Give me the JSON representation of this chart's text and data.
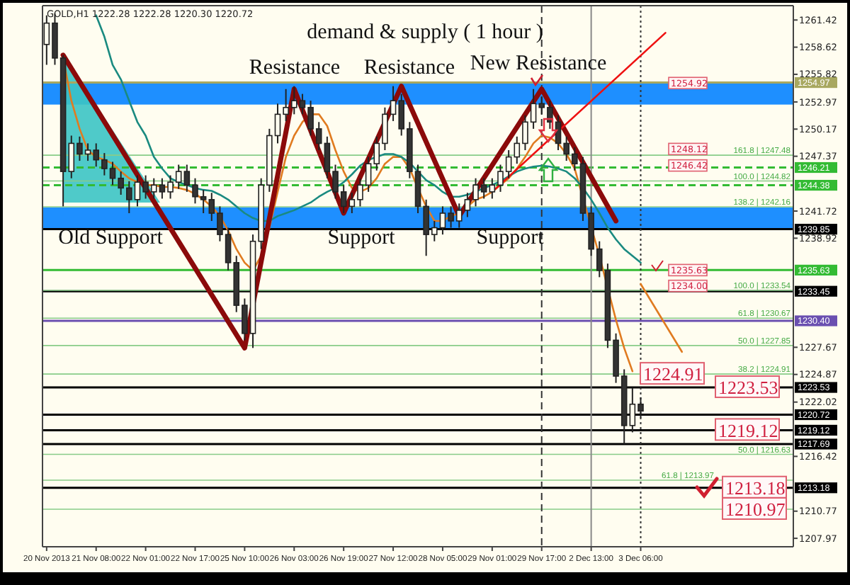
{
  "chart_data": {
    "type": "candlestick",
    "title": "demand & supply ( 1 hour )",
    "subtitle": "GOLD,H1  1222.28 1222.28 1220.30 1220.72",
    "categories": [
      "20 Nov 2013",
      null,
      null,
      null,
      null,
      null,
      "21 Nov 08:00",
      null,
      null,
      null,
      null,
      null,
      "22 Nov 01:00",
      null,
      null,
      null,
      null,
      null,
      "22 Nov 17:00",
      null,
      null,
      null,
      null,
      null,
      "25 Nov 10:00",
      null,
      null,
      null,
      null,
      null,
      "26 Nov 03:00",
      null,
      null,
      null,
      null,
      null,
      "26 Nov 19:00",
      null,
      null,
      null,
      null,
      null,
      "27 Nov 12:00",
      null,
      null,
      null,
      null,
      null,
      "28 Nov 05:00",
      null,
      null,
      null,
      null,
      null,
      "29 Nov 01:00",
      null,
      null,
      null,
      null,
      null,
      "29 Nov 17:00",
      null,
      null,
      null,
      null,
      null,
      "2 Dec 13:00",
      null,
      null,
      null,
      null,
      null,
      "3 Dec 06:00",
      null,
      null,
      null,
      null,
      null,
      null,
      null,
      null,
      null,
      null,
      null,
      null,
      null,
      null,
      null,
      null,
      null,
      null
    ],
    "ohlc": [
      [
        1258.9,
        1261.9,
        1256.8,
        1261.1
      ],
      [
        1261.1,
        1262.1,
        1256.8,
        1257.5
      ],
      [
        1257.5,
        1257.8,
        1242.2,
        1245.8
      ],
      [
        1245.8,
        1249.5,
        1245.1,
        1248.7
      ],
      [
        1248.7,
        1249.4,
        1246.9,
        1247.6
      ],
      [
        1247.6,
        1248.7,
        1246.9,
        1248.0
      ],
      [
        1248.0,
        1248.7,
        1246.3,
        1247.0
      ],
      [
        1247.0,
        1247.7,
        1245.4,
        1246.1
      ],
      [
        1246.1,
        1246.8,
        1244.4,
        1245.1
      ],
      [
        1245.1,
        1245.8,
        1243.4,
        1244.1
      ],
      [
        1244.1,
        1244.8,
        1241.5,
        1242.9
      ],
      [
        1242.9,
        1245.4,
        1242.2,
        1244.7
      ],
      [
        1244.7,
        1245.4,
        1243.0,
        1243.7
      ],
      [
        1243.7,
        1245.1,
        1243.0,
        1244.4
      ],
      [
        1244.4,
        1245.1,
        1243.0,
        1243.7
      ],
      [
        1243.7,
        1245.4,
        1243.0,
        1244.7
      ],
      [
        1244.7,
        1246.5,
        1244.0,
        1245.8
      ],
      [
        1245.8,
        1246.5,
        1243.7,
        1244.4
      ],
      [
        1244.4,
        1245.1,
        1242.5,
        1243.2
      ],
      [
        1243.2,
        1243.9,
        1241.5,
        1242.9
      ],
      [
        1242.9,
        1243.6,
        1240.7,
        1241.5
      ],
      [
        1241.5,
        1242.2,
        1238.6,
        1239.3
      ],
      [
        1239.3,
        1240.0,
        1235.6,
        1236.4
      ],
      [
        1236.4,
        1237.1,
        1231.3,
        1232.0
      ],
      [
        1232.0,
        1232.7,
        1228.4,
        1229.1
      ],
      [
        1229.1,
        1239.3,
        1227.6,
        1238.6
      ],
      [
        1238.6,
        1245.1,
        1237.8,
        1244.4
      ],
      [
        1244.4,
        1250.2,
        1243.7,
        1249.5
      ],
      [
        1249.5,
        1252.8,
        1248.7,
        1251.7
      ],
      [
        1251.7,
        1254.3,
        1251.0,
        1252.4
      ],
      [
        1252.4,
        1254.6,
        1251.7,
        1253.1
      ],
      [
        1253.1,
        1253.8,
        1251.7,
        1252.4
      ],
      [
        1252.4,
        1253.1,
        1249.5,
        1250.2
      ],
      [
        1250.2,
        1250.9,
        1248.0,
        1248.7
      ],
      [
        1248.7,
        1249.4,
        1245.1,
        1245.8
      ],
      [
        1245.8,
        1246.5,
        1243.0,
        1243.7
      ],
      [
        1243.7,
        1244.4,
        1241.5,
        1242.2
      ],
      [
        1242.2,
        1243.6,
        1241.5,
        1242.9
      ],
      [
        1242.9,
        1245.1,
        1242.2,
        1244.4
      ],
      [
        1244.4,
        1247.3,
        1243.7,
        1246.6
      ],
      [
        1246.6,
        1249.4,
        1245.9,
        1248.7
      ],
      [
        1248.7,
        1252.4,
        1248.0,
        1251.7
      ],
      [
        1251.7,
        1254.6,
        1251.0,
        1253.1
      ],
      [
        1253.1,
        1253.8,
        1249.5,
        1250.2
      ],
      [
        1250.2,
        1250.9,
        1245.1,
        1245.8
      ],
      [
        1245.8,
        1246.5,
        1241.5,
        1242.2
      ],
      [
        1242.2,
        1242.9,
        1237.1,
        1239.3
      ],
      [
        1239.3,
        1240.7,
        1238.6,
        1240.0
      ],
      [
        1240.0,
        1242.2,
        1239.3,
        1241.5
      ],
      [
        1241.5,
        1242.2,
        1240.0,
        1240.7
      ],
      [
        1240.7,
        1242.5,
        1240.0,
        1241.8
      ],
      [
        1241.8,
        1243.6,
        1241.1,
        1242.9
      ],
      [
        1242.9,
        1245.1,
        1242.2,
        1244.4
      ],
      [
        1244.4,
        1245.1,
        1243.0,
        1243.7
      ],
      [
        1243.7,
        1245.1,
        1243.0,
        1244.4
      ],
      [
        1244.4,
        1246.5,
        1243.7,
        1245.8
      ],
      [
        1245.8,
        1248.0,
        1245.1,
        1247.3
      ],
      [
        1247.3,
        1249.4,
        1246.6,
        1248.7
      ],
      [
        1248.7,
        1251.6,
        1248.0,
        1250.9
      ],
      [
        1250.9,
        1254.3,
        1250.2,
        1252.8
      ],
      [
        1252.8,
        1253.5,
        1251.7,
        1252.4
      ],
      [
        1252.4,
        1253.1,
        1250.2,
        1250.9
      ],
      [
        1250.9,
        1251.6,
        1248.0,
        1248.7
      ],
      [
        1248.7,
        1249.4,
        1246.9,
        1247.6
      ],
      [
        1247.6,
        1248.3,
        1245.9,
        1246.6
      ],
      [
        1246.6,
        1247.3,
        1240.7,
        1241.5
      ],
      [
        1241.5,
        1242.2,
        1237.1,
        1237.8
      ],
      [
        1237.8,
        1238.6,
        1234.9,
        1235.6
      ],
      [
        1235.6,
        1236.3,
        1227.6,
        1228.4
      ],
      [
        1228.4,
        1229.1,
        1224.0,
        1224.7
      ],
      [
        1224.7,
        1225.4,
        1217.7,
        1219.6
      ],
      [
        1219.6,
        1223.5,
        1218.9,
        1221.8
      ],
      [
        1221.8,
        1222.5,
        1220.4,
        1221.1
      ],
      null,
      null,
      null,
      null,
      null,
      null,
      null,
      null,
      null,
      null,
      null,
      null,
      null,
      null,
      null,
      null,
      null,
      null
    ],
    "series": [
      {
        "type": "line",
        "color": "#e07b20",
        "values": [
          null,
          null,
          1257.5,
          1253.1,
          1250.2,
          1248.0,
          1247.3,
          1247.0,
          1246.6,
          1245.8,
          1245.1,
          1244.7,
          1244.4,
          1244.4,
          1244.2,
          1244.2,
          1244.1,
          1243.9,
          1243.5,
          1242.9,
          1242.2,
          1241.2,
          1239.7,
          1237.8,
          1236.4,
          1235.6,
          1237.1,
          1240.0,
          1243.7,
          1247.3,
          1249.5,
          1250.9,
          1251.7,
          1251.7,
          1250.5,
          1248.0,
          1245.8,
          1244.1,
          1243.7,
          1244.1,
          1245.1,
          1246.6,
          1247.3,
          1247.3,
          1246.1,
          1244.1,
          1242.2,
          1240.7,
          1240.7,
          1241.2,
          1241.5,
          1242.2,
          1242.9,
          1243.2,
          1243.7,
          1244.4,
          1245.1,
          1246.1,
          1247.3,
          1248.7,
          1249.5,
          1249.3,
          1248.7,
          1247.6,
          1246.1,
          null,
          null,
          1237.1,
          null,
          1230.5,
          1227.6,
          1225.2,
          null,
          null,
          null,
          null,
          null,
          null,
          null,
          null,
          null,
          null,
          null,
          null,
          null,
          null,
          null,
          null,
          null,
          null,
          null
        ]
      },
      {
        "type": "line",
        "color": "#1a8a80",
        "values": [
          null,
          null,
          null,
          null,
          null,
          null,
          1261.9,
          1259.7,
          1256.8,
          1255.3,
          1253.1,
          1250.9,
          1249.5,
          1247.3,
          1246.1,
          1245.1,
          1244.7,
          1244.4,
          1244.1,
          1243.9,
          1243.8,
          1243.4,
          1242.9,
          1242.2,
          1241.5,
          1241.0,
          1240.7,
          1240.7,
          1241.2,
          1241.5,
          1241.8,
          1242.2,
          1242.6,
          1243.2,
          1243.7,
          1244.1,
          1244.7,
          1245.5,
          1246.4,
          1247.0,
          1247.3,
          1247.6,
          1247.6,
          1247.3,
          1246.7,
          1245.8,
          1244.9,
          1244.4,
          1243.7,
          1243.2,
          1243.2,
          1243.4,
          1243.7,
          1244.1,
          1244.4,
          1244.8,
          1245.3,
          1245.8,
          1246.1,
          1246.3,
          1246.4,
          1246.3,
          1246.1,
          1245.8,
          1245.1,
          1244.1,
          1242.9,
          1241.5,
          1240.0,
          1238.8,
          1237.8,
          1237.1,
          1236.4,
          null,
          null,
          null,
          null,
          null,
          null,
          null,
          null,
          null,
          null,
          null,
          null,
          null,
          null,
          null,
          null,
          null,
          null
        ]
      },
      {
        "type": "line",
        "color": "#8b0a0a",
        "values": [
          null,
          null,
          1257.8,
          null,
          null,
          null,
          null,
          null,
          null,
          null,
          null,
          null,
          null,
          null,
          null,
          null,
          null,
          null,
          null,
          null,
          null,
          null,
          null,
          null,
          1227.6,
          null,
          null,
          null,
          null,
          null,
          1254.3,
          null,
          null,
          null,
          null,
          null,
          1241.5,
          null,
          null,
          null,
          null,
          null,
          null,
          1254.6,
          null,
          null,
          null,
          null,
          null,
          null,
          1241.2,
          null,
          null,
          null,
          null,
          null,
          null,
          null,
          null,
          null,
          1254.3,
          null,
          null,
          null,
          null,
          null,
          null,
          null,
          null,
          1240.7,
          null,
          null,
          null,
          null,
          null,
          null,
          null,
          null,
          null,
          null,
          null,
          null,
          null,
          null,
          null,
          null,
          null,
          null,
          null,
          null,
          null
        ]
      },
      {
        "type": "line",
        "color": "#ee1111",
        "values": [
          null,
          null,
          null,
          null,
          null,
          null,
          null,
          null,
          null,
          null,
          null,
          null,
          null,
          null,
          null,
          null,
          null,
          null,
          null,
          null,
          null,
          null,
          null,
          null,
          null,
          null,
          null,
          null,
          null,
          null,
          null,
          null,
          null,
          null,
          null,
          null,
          null,
          null,
          null,
          null,
          null,
          null,
          null,
          null,
          null,
          null,
          null,
          null,
          null,
          null,
          null,
          null,
          null,
          null,
          1243.7,
          null,
          null,
          null,
          null,
          null,
          null,
          null,
          null,
          null,
          null,
          null,
          null,
          null,
          null,
          null,
          null,
          null,
          null,
          null,
          null,
          1260.1,
          null,
          null,
          null,
          null,
          null,
          null,
          null,
          null,
          null,
          null,
          null,
          null,
          null,
          null,
          null
        ]
      },
      {
        "type": "line",
        "color": "#e07b20",
        "values": [
          null,
          null,
          null,
          null,
          null,
          null,
          null,
          null,
          null,
          null,
          null,
          null,
          null,
          null,
          null,
          null,
          null,
          null,
          null,
          null,
          null,
          null,
          null,
          null,
          null,
          null,
          null,
          null,
          null,
          null,
          null,
          null,
          null,
          null,
          null,
          null,
          null,
          null,
          null,
          null,
          null,
          null,
          null,
          null,
          null,
          null,
          null,
          null,
          null,
          null,
          null,
          null,
          null,
          null,
          null,
          null,
          null,
          null,
          null,
          null,
          null,
          null,
          null,
          null,
          null,
          null,
          null,
          null,
          null,
          null,
          null,
          null,
          1234.2,
          null,
          null,
          null,
          null,
          1227.2,
          null,
          null,
          null,
          null,
          null,
          null,
          null,
          null,
          null,
          null,
          null,
          null,
          null
        ]
      }
    ],
    "ylim": [
      1207.1,
      1262.9
    ],
    "yticks": [
      1261.42,
      1258.62,
      1255.82,
      1252.97,
      1250.17,
      1247.37,
      1241.72,
      1238.92,
      1227.67,
      1224.87,
      1222.02,
      1216.42,
      1210.77,
      1207.97
    ],
    "bands": [
      {
        "axis": "y",
        "from": 1252.7,
        "to": 1254.9,
        "color": "#1e8fff"
      },
      {
        "axis": "y",
        "from": 1239.9,
        "to": 1242.1,
        "color": "#1e8fff"
      }
    ],
    "ref_lines": [
      {
        "axis": "y",
        "value": 1254.97,
        "label": "1254.97",
        "color": "#a8a860"
      },
      {
        "axis": "y",
        "value": 1246.21,
        "label": "1246.21",
        "color": "#33bb33",
        "line_style": "dashed"
      },
      {
        "axis": "y",
        "value": 1244.38,
        "label": "1244.38",
        "color": "#33bb33",
        "line_style": "dashed"
      },
      {
        "axis": "y",
        "value": 1239.85,
        "label": "1239.85",
        "color": "#000000"
      },
      {
        "axis": "y",
        "value": 1235.63,
        "label": "1235.63",
        "color": "#33bb33"
      },
      {
        "axis": "y",
        "value": 1233.45,
        "label": "1233.45",
        "color": "#000000"
      },
      {
        "axis": "y",
        "value": 1230.4,
        "label": "1230.40",
        "color": "#6a4fb0"
      },
      {
        "axis": "y",
        "value": 1223.53,
        "label": "1223.53",
        "color": "#000000"
      },
      {
        "axis": "y",
        "value": 1220.72,
        "label": "1220.72",
        "color": "#000000"
      },
      {
        "axis": "y",
        "value": 1219.12,
        "label": "1219.12",
        "color": "#000000"
      },
      {
        "axis": "y",
        "value": 1217.69,
        "label": "1217.69",
        "color": "#000000"
      },
      {
        "axis": "y",
        "value": 1213.18,
        "label": "1213.18",
        "color": "#000000"
      },
      {
        "axis": "y",
        "value": 1247.48,
        "color": "#88cc88"
      },
      {
        "axis": "y",
        "value": 1244.82,
        "color": "#88cc88"
      },
      {
        "axis": "y",
        "value": 1242.16,
        "color": "#88cc88"
      },
      {
        "axis": "y",
        "value": 1233.54,
        "color": "#88cc88"
      },
      {
        "axis": "y",
        "value": 1230.67,
        "color": "#88cc88"
      },
      {
        "axis": "y",
        "value": 1227.85,
        "color": "#88cc88"
      },
      {
        "axis": "y",
        "value": 1224.91,
        "color": "#88cc88"
      },
      {
        "axis": "y",
        "value": 1216.63,
        "color": "#88cc88"
      },
      {
        "axis": "y",
        "value": 1213.97,
        "color": "#88cc88"
      },
      {
        "axis": "y",
        "value": 1210.97,
        "color": "#88cc88"
      },
      {
        "axis": "x",
        "value": "29 Nov 17:00",
        "color": "#333333",
        "line_style": "dashed"
      },
      {
        "axis": "x",
        "value": "2 Dec 13:00",
        "color": "#888888",
        "line_style": "solid"
      },
      {
        "axis": "x",
        "value": "3 Dec 06:00",
        "color": "#333333",
        "line_style": "dotted"
      }
    ],
    "annotations": [
      "Resistance",
      "Resistance",
      "New Resistance",
      "Old Support",
      "Support",
      "Support",
      {
        "text": "1254.92",
        "y": 1254.92
      },
      {
        "text": "1248.12",
        "y": 1248.12
      },
      {
        "text": "1246.42",
        "y": 1246.42
      },
      {
        "text": "1235.63",
        "y": 1235.63
      },
      {
        "text": "1234.00",
        "y": 1234.0
      },
      {
        "text": "1224.91",
        "y": 1224.91
      },
      {
        "text": "1223.53",
        "y": 1223.53
      },
      {
        "text": "1219.12",
        "y": 1219.12
      },
      {
        "text": "1213.18",
        "y": 1213.18
      },
      {
        "text": "1210.97",
        "y": 1210.97
      },
      {
        "text": "161.8 | 1247.48",
        "y": 1247.48
      },
      {
        "text": "100.0 | 1244.82",
        "y": 1244.82
      },
      {
        "text": "138.2 | 1242.16",
        "y": 1242.16
      },
      {
        "text": "100.0 | 1233.54",
        "y": 1233.54
      },
      {
        "text": "61.8 | 1230.67",
        "y": 1230.67
      },
      {
        "text": "50.0 | 1227.85",
        "y": 1227.85
      },
      {
        "text": "38.2 | 1224.91",
        "y": 1224.91
      },
      {
        "text": "50.0 | 1216.63",
        "y": 1216.63
      },
      {
        "text": "61.8 | 1213.97",
        "y": 1213.97
      }
    ]
  }
}
